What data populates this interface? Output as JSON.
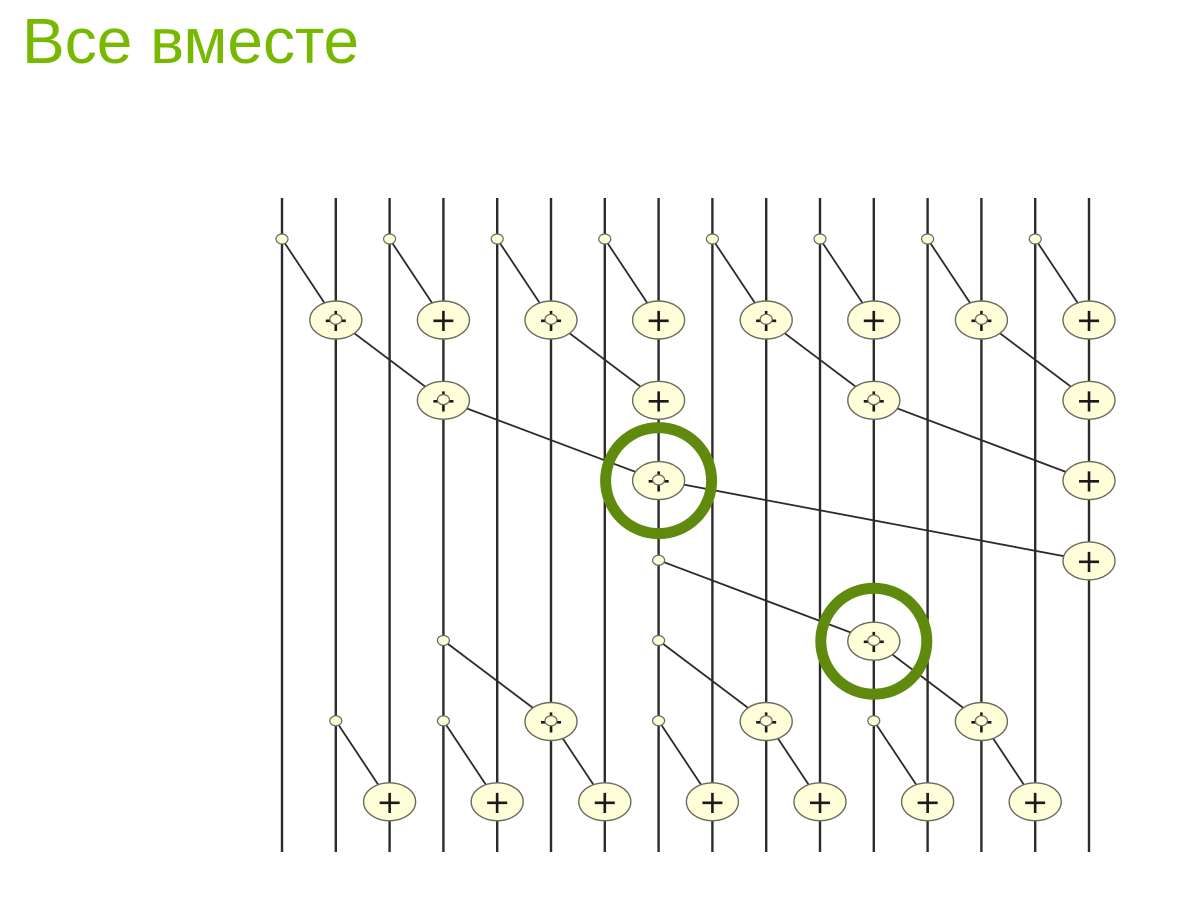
{
  "slide": {
    "title": "Все вместе",
    "title_color": "#76b900"
  },
  "diagram": {
    "type": "parallel-prefix-sum-network",
    "lanes": 16,
    "operator_symbol": "+",
    "colors": {
      "lane": "#2b2b2b",
      "edge": "#2b2b2b",
      "node_fill": "#fefed8",
      "node_stroke": "#6a6a60",
      "highlight": "#5f8a0d"
    },
    "steps": [
      {
        "edges": [
          [
            0,
            1
          ],
          [
            2,
            3
          ],
          [
            4,
            5
          ],
          [
            6,
            7
          ],
          [
            8,
            9
          ],
          [
            10,
            11
          ],
          [
            12,
            13
          ],
          [
            14,
            15
          ]
        ]
      },
      {
        "edges": [
          [
            1,
            3
          ],
          [
            5,
            7
          ],
          [
            9,
            11
          ],
          [
            13,
            15
          ]
        ]
      },
      {
        "edges": [
          [
            3,
            7
          ],
          [
            11,
            15
          ]
        ]
      },
      {
        "edges": [
          [
            7,
            15
          ]
        ]
      },
      {
        "edges": [
          [
            7,
            11
          ]
        ]
      },
      {
        "edges": [
          [
            3,
            5
          ],
          [
            7,
            9
          ],
          [
            11,
            13
          ]
        ]
      },
      {
        "edges": [
          [
            1,
            2
          ],
          [
            3,
            4
          ],
          [
            5,
            6
          ],
          [
            7,
            8
          ],
          [
            9,
            10
          ],
          [
            11,
            12
          ],
          [
            13,
            14
          ]
        ]
      }
    ],
    "highlighted_operations": [
      {
        "step": 2,
        "lane": 7
      },
      {
        "step": 4,
        "lane": 11
      }
    ]
  }
}
